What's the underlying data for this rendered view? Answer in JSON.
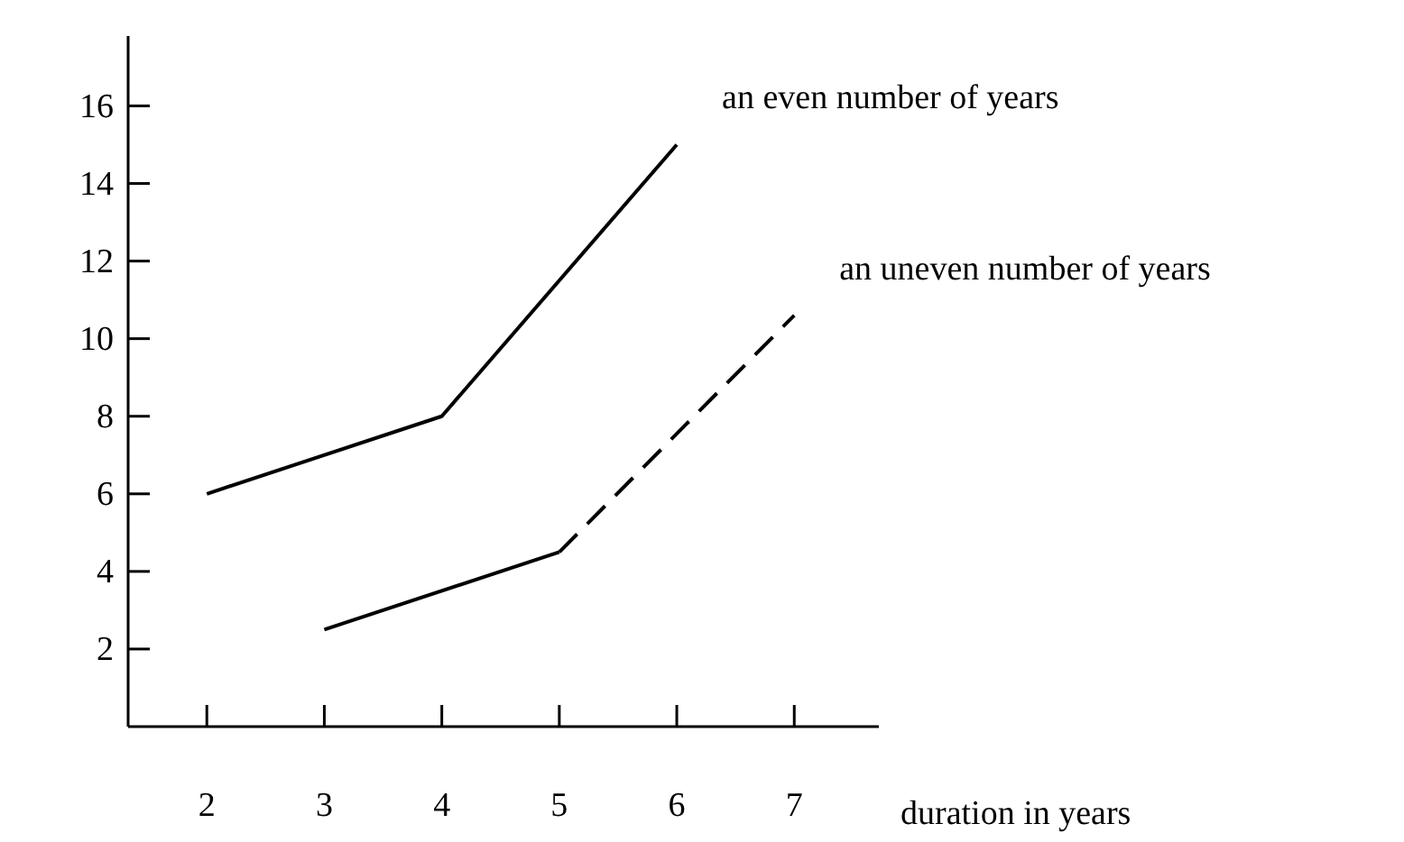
{
  "chart_data": {
    "type": "line",
    "xlabel": "duration in years",
    "xlim": [
      1.33,
      7.72
    ],
    "xticks": [
      2,
      3,
      4,
      5,
      6,
      7
    ],
    "ylim": [
      0,
      17.8
    ],
    "yticks": [
      2,
      4,
      6,
      8,
      10,
      12,
      14,
      16
    ],
    "grid": false,
    "marker": "none",
    "series": [
      {
        "name": "an even number of years",
        "color": "#000000",
        "x": [
          2,
          4,
          6
        ],
        "values": [
          6,
          8,
          15
        ],
        "line_style": "solid"
      },
      {
        "color": "#000000",
        "x": [
          3,
          5
        ],
        "values": [
          2.5,
          4.5
        ],
        "line_style": "solid"
      },
      {
        "name": "an uneven number of years",
        "color": "#000000",
        "x": [
          5,
          7
        ],
        "values": [
          4.5,
          10.6
        ],
        "line_style": "dashed"
      }
    ]
  }
}
